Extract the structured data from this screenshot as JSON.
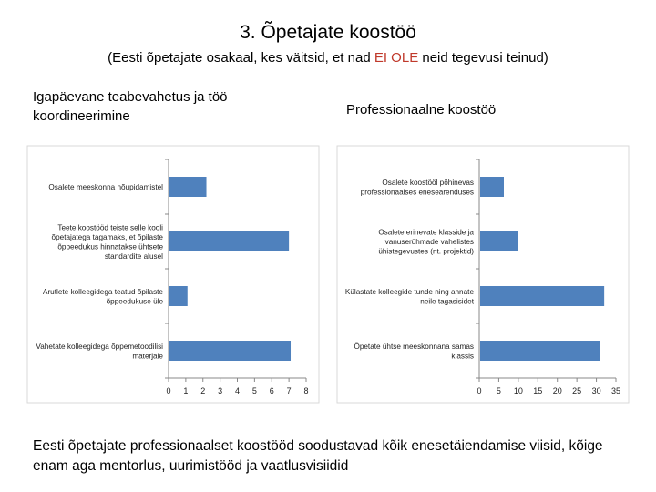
{
  "slide": {
    "title": "3. Õpetajate koostöö",
    "subtitle_before": "(Eesti õpetajate osakaal, kes väitsid, et nad ",
    "subtitle_highlight": "EI OLE",
    "subtitle_after": " neid tegevusi teinud)",
    "highlight_color": "#c0392b",
    "footer": "Eesti õpetajate professionaalset koostööd soodustavad kõik enesetäiendamise viisid, kõige enam aga mentorlus, uurimistööd ja vaatlusvisiidid"
  },
  "chart_data": [
    {
      "type": "bar",
      "orientation": "horizontal",
      "title": "Igapäevane teabevahetus ja töö koordineerimine",
      "categories": [
        [
          "Osalete meeskonna nõupidamistel"
        ],
        [
          "Teete koostööd teiste selle kooli",
          "õpetajatega tagamaks, et õpilaste",
          "õppeedukus hinnatakse ühtsete",
          "standardite alusel"
        ],
        [
          "Arutlete kolleegidega teatud õpilaste",
          "õppeedukuse üle"
        ],
        [
          "Vahetate kolleegidega õppemetoodilisi",
          "materjale"
        ]
      ],
      "values": [
        2.2,
        7.0,
        1.1,
        7.1
      ],
      "xlim": [
        0,
        8
      ],
      "xticks": [
        "0",
        "1",
        "2",
        "3",
        "4",
        "5",
        "6",
        "7",
        "8"
      ],
      "bar_color": "#4f81bd",
      "grid": false
    },
    {
      "type": "bar",
      "orientation": "horizontal",
      "title": "Professionaalne koostöö",
      "categories": [
        [
          "Osalete koostööl põhinevas",
          "professionaalses enesearenduses"
        ],
        [
          "Osalete erinevate klasside ja",
          "vanuserühmade vahelistes",
          "ühistegevustes (nt. projektid)"
        ],
        [
          "Külastate kolleegide tunde ning annate",
          "neile tagasisidet"
        ],
        [
          "Õpetate ühtse meeskonnana samas",
          "klassis"
        ]
      ],
      "values": [
        6.3,
        10.0,
        32.0,
        31.0
      ],
      "xlim": [
        0,
        35
      ],
      "xticks": [
        "0",
        "5",
        "10",
        "15",
        "20",
        "25",
        "30",
        "35"
      ],
      "bar_color": "#4f81bd",
      "grid": false
    }
  ]
}
